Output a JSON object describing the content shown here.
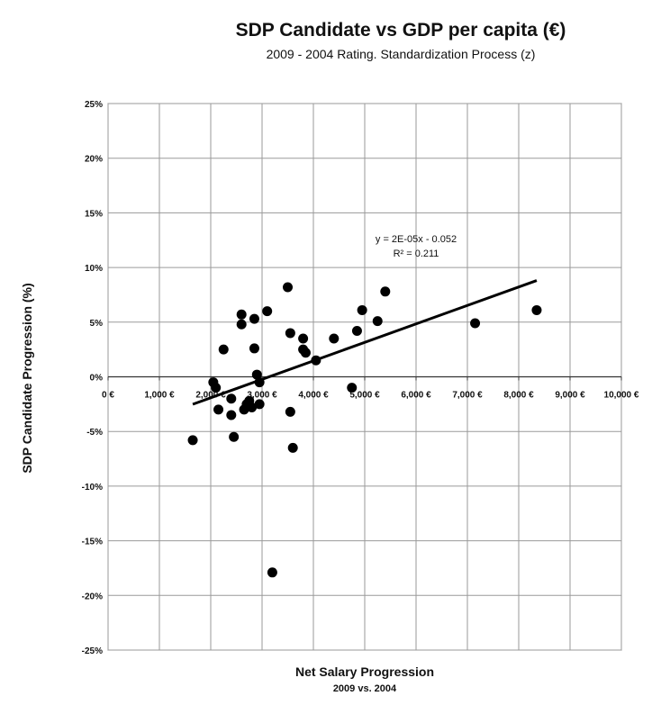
{
  "chart_data": {
    "type": "scatter",
    "title": "SDP Candidate vs GDP per capita (€)",
    "subtitle": "2009 - 2004 Rating. Standardization Process (z)",
    "xlabel": "Net Salary Progression",
    "xlabel_sub": "2009 vs. 2004",
    "ylabel": "SDP Candidate Progression (%)",
    "xlim": [
      0,
      10000
    ],
    "ylim": [
      -25,
      25
    ],
    "x_ticks": [
      0,
      1000,
      2000,
      3000,
      4000,
      5000,
      6000,
      7000,
      8000,
      9000,
      10000
    ],
    "x_tick_labels": [
      "0 €",
      "1,000 €",
      "2,000 €",
      "3,000 €",
      "4,000 €",
      "5,000 €",
      "6,000 €",
      "7,000 €",
      "8,000 €",
      "9,000 €",
      "10,000 €"
    ],
    "y_ticks": [
      25,
      20,
      15,
      10,
      5,
      0,
      -5,
      -10,
      -15,
      -20,
      -25
    ],
    "y_tick_labels": [
      "25%",
      "20%",
      "15%",
      "10%",
      "5%",
      "0%",
      "-5%",
      "-10%",
      "-15%",
      "-20%",
      "-25%"
    ],
    "grid": true,
    "legend": "none",
    "marker_color": "#000000",
    "points": [
      {
        "x": 1650,
        "y": -5.8
      },
      {
        "x": 2050,
        "y": -0.5
      },
      {
        "x": 2100,
        "y": -1.0
      },
      {
        "x": 2150,
        "y": -3.0
      },
      {
        "x": 2250,
        "y": 2.5
      },
      {
        "x": 2400,
        "y": -2.0
      },
      {
        "x": 2400,
        "y": -3.5
      },
      {
        "x": 2450,
        "y": -5.5
      },
      {
        "x": 2600,
        "y": 5.7
      },
      {
        "x": 2600,
        "y": 4.8
      },
      {
        "x": 2650,
        "y": -3.0
      },
      {
        "x": 2700,
        "y": -2.5
      },
      {
        "x": 2750,
        "y": -2.2
      },
      {
        "x": 2800,
        "y": -2.8
      },
      {
        "x": 2850,
        "y": 5.3
      },
      {
        "x": 2850,
        "y": 2.6
      },
      {
        "x": 2900,
        "y": 0.2
      },
      {
        "x": 2950,
        "y": -0.5
      },
      {
        "x": 2950,
        "y": -2.5
      },
      {
        "x": 3100,
        "y": 6.0
      },
      {
        "x": 3200,
        "y": -17.9
      },
      {
        "x": 3500,
        "y": 8.2
      },
      {
        "x": 3550,
        "y": 4.0
      },
      {
        "x": 3550,
        "y": -3.2
      },
      {
        "x": 3600,
        "y": -6.5
      },
      {
        "x": 3800,
        "y": 3.5
      },
      {
        "x": 3800,
        "y": 2.5
      },
      {
        "x": 3850,
        "y": 2.2
      },
      {
        "x": 4050,
        "y": 1.5
      },
      {
        "x": 4400,
        "y": 3.5
      },
      {
        "x": 4750,
        "y": -1.0
      },
      {
        "x": 4850,
        "y": 4.2
      },
      {
        "x": 4950,
        "y": 6.1
      },
      {
        "x": 5250,
        "y": 5.1
      },
      {
        "x": 5400,
        "y": 7.8
      },
      {
        "x": 7150,
        "y": 4.9
      },
      {
        "x": 8350,
        "y": 6.1
      }
    ],
    "trendline": {
      "x_start": 1650,
      "x_end": 8350,
      "slope": 0.00169,
      "intercept": -5.3
    },
    "equation": "y = 2E-05x - 0.052",
    "r_squared": "R² = 0.211"
  }
}
